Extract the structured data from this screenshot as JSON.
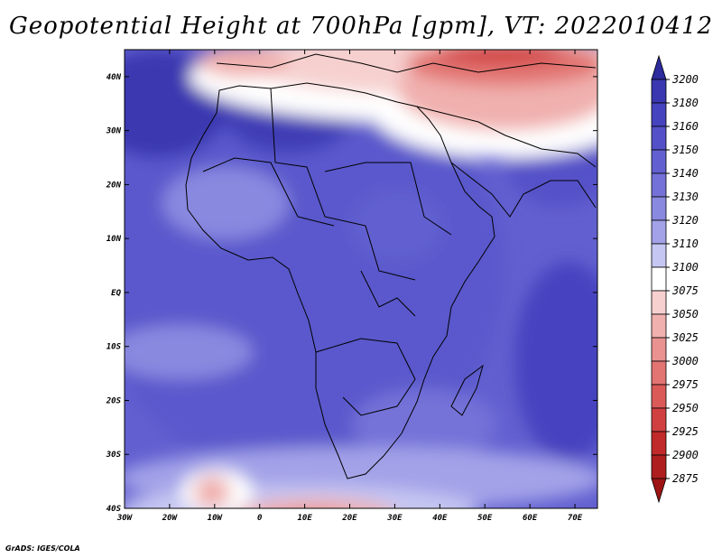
{
  "title": "Geopotential Height at 700hPa [gpm], VT: 2022010412",
  "credit": "GrADS: IGES/COLA",
  "map": {
    "lon_range": [
      -30,
      75
    ],
    "lat_range": [
      -40,
      45
    ],
    "lon_ticks": [
      {
        "value": -30,
        "label": "30W"
      },
      {
        "value": -20,
        "label": "20W"
      },
      {
        "value": -10,
        "label": "10W"
      },
      {
        "value": 0,
        "label": "0"
      },
      {
        "value": 10,
        "label": "10E"
      },
      {
        "value": 20,
        "label": "20E"
      },
      {
        "value": 30,
        "label": "30E"
      },
      {
        "value": 40,
        "label": "40E"
      },
      {
        "value": 50,
        "label": "50E"
      },
      {
        "value": 60,
        "label": "60E"
      },
      {
        "value": 70,
        "label": "70E"
      }
    ],
    "lat_ticks": [
      {
        "value": 40,
        "label": "40N"
      },
      {
        "value": 30,
        "label": "30N"
      },
      {
        "value": 20,
        "label": "20N"
      },
      {
        "value": 10,
        "label": "10N"
      },
      {
        "value": 0,
        "label": "EQ"
      },
      {
        "value": -10,
        "label": "10S"
      },
      {
        "value": -20,
        "label": "20S"
      },
      {
        "value": -30,
        "label": "30S"
      },
      {
        "value": -40,
        "label": "40S"
      }
    ]
  },
  "colorbar": {
    "levels": [
      3200,
      3180,
      3160,
      3150,
      3140,
      3130,
      3120,
      3110,
      3100,
      3075,
      3050,
      3025,
      3000,
      2975,
      2950,
      2925,
      2900,
      2875
    ],
    "colors": [
      "#2e2b9e",
      "#3a37b0",
      "#4643bf",
      "#5451c8",
      "#6260d0",
      "#7472d8",
      "#8a89e0",
      "#a3a2e8",
      "#c6c6f2",
      "#ffffff",
      "#f6d0cf",
      "#f0b0ae",
      "#e99290",
      "#e27472",
      "#da5a58",
      "#d04040",
      "#c02a2a",
      "#ae1e1e",
      "#9e1414"
    ]
  }
}
